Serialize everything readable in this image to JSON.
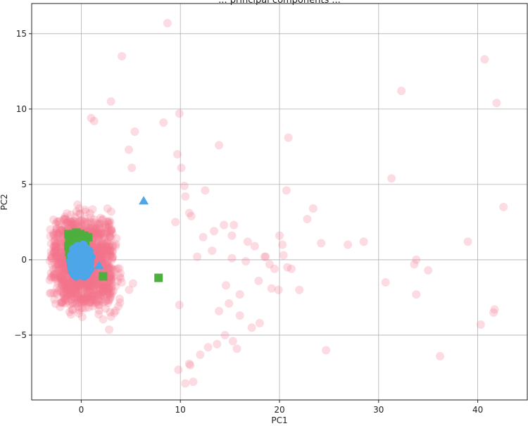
{
  "chart_data": {
    "type": "scatter",
    "title": "... principal components ...",
    "xlabel": "PC1",
    "ylabel": "PC2",
    "xlim": [
      -5,
      45
    ],
    "ylim": [
      -9.3,
      17
    ],
    "xticks": [
      0,
      10,
      20,
      30,
      40
    ],
    "yticks": [
      -5,
      0,
      5,
      10,
      15
    ],
    "grid": true,
    "colors": {
      "pink": "#f4728a",
      "green": "#4daf3d",
      "blue": "#4da6e8"
    },
    "series": [
      {
        "marker": "circle",
        "color": "#f4728a",
        "opacity": 0.25,
        "cluster": {
          "center": [
            0,
            -0.2
          ],
          "spread": [
            3.6,
            3.6
          ],
          "count": 850
        },
        "x": [
          8.7,
          4.1,
          3.0,
          1.3,
          1.0,
          9.9,
          8.3,
          5.4,
          9.7,
          13.9,
          4.8,
          5.1,
          10.1,
          10.4,
          10.5,
          10.9,
          11.1,
          12.5,
          13.4,
          14.4,
          15.2,
          15.4,
          16.8,
          17.5,
          18.6,
          20.0,
          20.3,
          20.4,
          20.8,
          21.2,
          22.0,
          22.8,
          23.4,
          24.2,
          26.9,
          28.5,
          31.3,
          32.3,
          33.6,
          33.8,
          35.0,
          30.7,
          33.8,
          24.7,
          36.2,
          39.0,
          40.7,
          41.9,
          42.6,
          40.3,
          41.6,
          41.7,
          20.9,
          17.2,
          14.5,
          15.3,
          16.0,
          18.0,
          12.0,
          11.0,
          10.9,
          9.8,
          10.5,
          11.3,
          12.8,
          13.7,
          15.7,
          17.9,
          19.2,
          19.5,
          20.7,
          13.2,
          12.3,
          11.7,
          9.5,
          9.9,
          13.9,
          16.0,
          14.9,
          16.6,
          19.0,
          19.9,
          18.5,
          15.2,
          14.6
        ],
        "y": [
          15.7,
          13.5,
          10.5,
          9.2,
          9.4,
          9.7,
          9.1,
          8.5,
          7.0,
          7.6,
          7.3,
          6.1,
          6.1,
          4.9,
          4.2,
          3.1,
          2.9,
          4.6,
          1.9,
          2.3,
          1.6,
          2.3,
          1.2,
          0.9,
          0.2,
          1.6,
          1.0,
          0.3,
          -0.5,
          -0.6,
          -2.0,
          2.7,
          3.4,
          1.1,
          1.0,
          1.2,
          5.4,
          11.2,
          -0.3,
          0.0,
          -0.7,
          -1.5,
          -2.3,
          -6.0,
          -6.4,
          1.2,
          13.3,
          10.4,
          3.5,
          -4.3,
          -3.5,
          -3.3,
          8.1,
          -4.5,
          -5.0,
          -5.4,
          -2.3,
          -4.2,
          -6.3,
          -7.0,
          -6.9,
          -7.3,
          -8.2,
          -8.1,
          -5.8,
          -5.6,
          -5.9,
          -1.4,
          -1.9,
          -0.6,
          4.6,
          0.6,
          1.5,
          0.2,
          2.5,
          -3.0,
          -3.4,
          -3.7,
          -2.9,
          -0.1,
          -0.3,
          -2.0,
          0.2,
          0.1,
          -1.7
        ]
      },
      {
        "marker": "square",
        "color": "#4daf3d",
        "opacity": 1,
        "x": [
          -1.3,
          -0.9,
          -0.5,
          -0.1,
          0.3,
          0.7,
          -1.2,
          -0.8,
          -0.4,
          0.0,
          0.4,
          -1.3,
          -0.9,
          -0.5,
          -0.1,
          0.3,
          -1.2,
          -0.8,
          -0.4,
          0.0,
          -1.1,
          -0.7,
          -0.3,
          -1.0,
          -0.6,
          -0.9,
          2.2,
          7.8
        ],
        "y": [
          1.7,
          1.7,
          1.8,
          1.7,
          1.6,
          1.5,
          1.3,
          1.4,
          1.4,
          1.3,
          1.2,
          0.9,
          1.0,
          1.0,
          0.9,
          0.8,
          0.5,
          0.6,
          0.5,
          0.4,
          0.1,
          0.2,
          0.1,
          -0.3,
          -0.2,
          -0.6,
          -1.1,
          -1.2
        ]
      },
      {
        "marker": "circle",
        "color": "#4da6e8",
        "opacity": 1,
        "x": [
          -1.0,
          -0.6,
          -0.2,
          0.2,
          0.6,
          1.0,
          -1.1,
          -0.7,
          -0.3,
          0.1,
          0.5,
          0.9,
          -1.0,
          -0.6,
          -0.2,
          0.2,
          0.6,
          0.9,
          -0.9,
          -0.5,
          -0.1,
          0.3,
          0.7,
          -0.7,
          -0.3,
          0.1,
          0.5,
          -0.5,
          -0.1,
          0.3,
          -0.8,
          0.0,
          0.8,
          -0.4,
          0.4,
          0.2,
          -0.2,
          0.0,
          0.1
        ],
        "y": [
          0.3,
          0.4,
          0.5,
          0.4,
          0.3,
          0.2,
          -0.1,
          0.0,
          0.1,
          0.0,
          -0.1,
          -0.2,
          -0.5,
          -0.4,
          -0.3,
          -0.4,
          -0.5,
          -0.6,
          -0.8,
          -0.7,
          -0.6,
          -0.7,
          -0.8,
          -1.0,
          -0.9,
          -0.9,
          -1.0,
          -1.1,
          -1.0,
          -1.1,
          0.7,
          0.8,
          0.6,
          0.9,
          0.8,
          1.0,
          0.2,
          -0.2,
          0.5
        ]
      },
      {
        "marker": "triangle",
        "color": "#4da6e8",
        "opacity": 1,
        "x": [
          6.3,
          1.8
        ],
        "y": [
          3.9,
          -0.4
        ]
      }
    ]
  }
}
